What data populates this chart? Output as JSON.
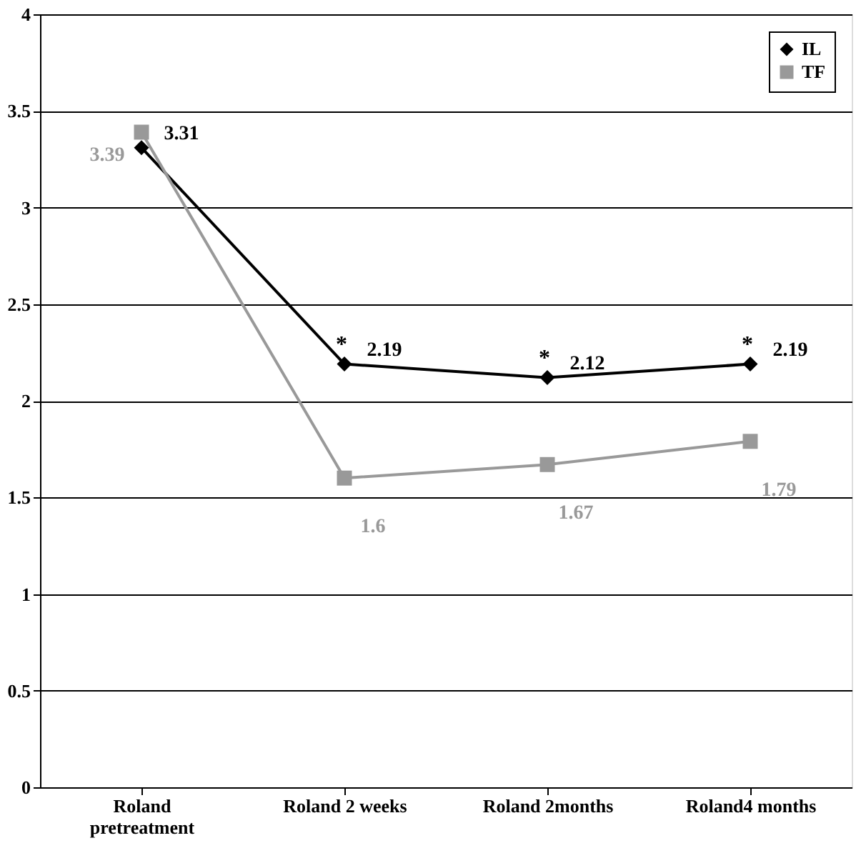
{
  "chart_data": {
    "type": "line",
    "categories": [
      "Roland pretreatment",
      "Roland 2 weeks",
      "Roland 2months",
      "Roland4 months"
    ],
    "series": [
      {
        "name": "IL",
        "color": "#000000",
        "marker": "diamond",
        "values": [
          3.31,
          2.19,
          2.12,
          2.19
        ]
      },
      {
        "name": "TF",
        "color": "#999999",
        "marker": "square",
        "values": [
          3.39,
          1.6,
          1.67,
          1.79
        ]
      }
    ],
    "ylim": [
      0,
      4
    ],
    "yticks": [
      0,
      0.5,
      1,
      1.5,
      2,
      2.5,
      3,
      3.5,
      4
    ],
    "grid": "y",
    "legend": "top right",
    "data_labels": true,
    "line_style": "solid",
    "annotations": [
      {
        "text": "*",
        "x": "Roland 2 weeks",
        "y": 2.19
      },
      {
        "text": "*",
        "x": "Roland 2months",
        "y": 2.12
      },
      {
        "text": "*",
        "x": "Roland4 months",
        "y": 2.19
      }
    ]
  }
}
